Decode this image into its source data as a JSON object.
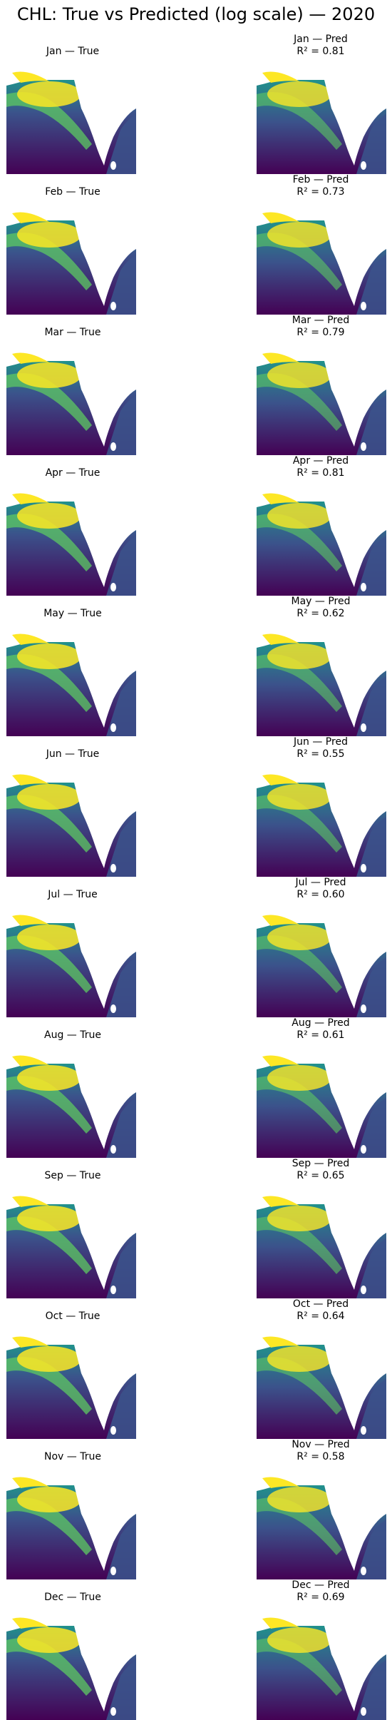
{
  "title": "CHL: True vs Predicted (log scale) — 2020",
  "colormap": [
    "#440154",
    "#3b528b",
    "#21918c",
    "#5ec962",
    "#fde725"
  ],
  "chart_data": {
    "type": "heatmap",
    "title": "CHL: True vs Predicted (log scale) — 2020",
    "year": 2020,
    "scale": "log",
    "colormap": "viridis",
    "months": [
      {
        "month": "Jan",
        "true_label": "Jan — True",
        "pred_label": "Jan — Pred",
        "r2_text": "R² = 0.81",
        "r2": 0.81
      },
      {
        "month": "Feb",
        "true_label": "Feb — True",
        "pred_label": "Feb — Pred",
        "r2_text": "R² = 0.73",
        "r2": 0.73
      },
      {
        "month": "Mar",
        "true_label": "Mar — True",
        "pred_label": "Mar — Pred",
        "r2_text": "R² = 0.79",
        "r2": 0.79
      },
      {
        "month": "Apr",
        "true_label": "Apr — True",
        "pred_label": "Apr — Pred",
        "r2_text": "R² = 0.81",
        "r2": 0.81
      },
      {
        "month": "May",
        "true_label": "May — True",
        "pred_label": "May — Pred",
        "r2_text": "R² = 0.62",
        "r2": 0.62
      },
      {
        "month": "Jun",
        "true_label": "Jun — True",
        "pred_label": "Jun — Pred",
        "r2_text": "R² = 0.55",
        "r2": 0.55
      },
      {
        "month": "Jul",
        "true_label": "Jul — True",
        "pred_label": "Jul — Pred",
        "r2_text": "R² = 0.60",
        "r2": 0.6
      },
      {
        "month": "Aug",
        "true_label": "Aug — True",
        "pred_label": "Aug — Pred",
        "r2_text": "R² = 0.61",
        "r2": 0.61
      },
      {
        "month": "Sep",
        "true_label": "Sep — True",
        "pred_label": "Sep — Pred",
        "r2_text": "R² = 0.65",
        "r2": 0.65
      },
      {
        "month": "Oct",
        "true_label": "Oct — True",
        "pred_label": "Oct — Pred",
        "r2_text": "R² = 0.64",
        "r2": 0.64
      },
      {
        "month": "Nov",
        "true_label": "Nov — True",
        "pred_label": "Nov — Pred",
        "r2_text": "R² = 0.58",
        "r2": 0.58
      },
      {
        "month": "Dec",
        "true_label": "Dec — True",
        "pred_label": "Dec — Pred",
        "r2_text": "R² = 0.69",
        "r2": 0.69
      }
    ]
  }
}
